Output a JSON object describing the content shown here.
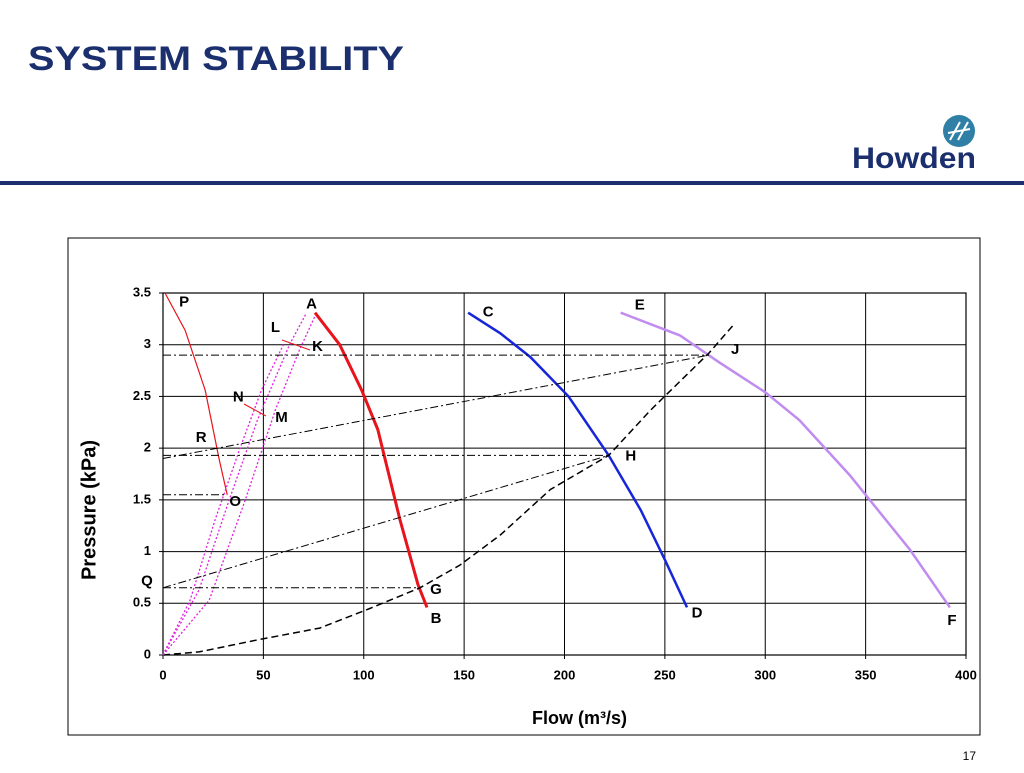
{
  "header": {
    "title": "SYSTEM STABILITY",
    "logo": "Howden"
  },
  "footer": {
    "page_number": "17"
  },
  "chart_data": {
    "type": "line",
    "x_label": "Flow (m³/s)",
    "y_label": "Pressure (kPa)",
    "xlim": [
      0,
      400
    ],
    "xticks": [
      0,
      50,
      100,
      150,
      200,
      250,
      300,
      350,
      400
    ],
    "ylim": [
      0,
      3.5
    ],
    "yticks": [
      0,
      0.5,
      1,
      1.5,
      2,
      2.5,
      3,
      3.5
    ],
    "grid": true,
    "series": [
      {
        "color": "#e8141b",
        "style": "solid",
        "width": 3,
        "x": [
          75.7,
          88,
          99,
          107,
          118,
          127,
          131.5
        ],
        "values": [
          3.31,
          3.0,
          2.56,
          2.18,
          1.31,
          0.68,
          0.46
        ]
      },
      {
        "color": "#1626d8",
        "style": "solid",
        "width": 2.5,
        "x": [
          152,
          168,
          183,
          202,
          222,
          238,
          250,
          261
        ],
        "values": [
          3.31,
          3.11,
          2.88,
          2.5,
          1.93,
          1.4,
          0.92,
          0.46
        ]
      },
      {
        "color": "#c08cf0",
        "style": "solid",
        "width": 2.5,
        "x": [
          228,
          257.5,
          277,
          300,
          317,
          342,
          372,
          392
        ],
        "values": [
          3.31,
          3.09,
          2.83,
          2.54,
          2.27,
          1.74,
          1.02,
          0.46
        ]
      },
      {
        "color": "#000000",
        "style": "dash",
        "width": 1.5,
        "x": [
          0,
          18,
          48,
          78,
          103,
          128,
          148,
          168,
          193,
          222,
          243,
          272,
          285
        ],
        "values": [
          0,
          0.03,
          0.15,
          0.26,
          0.45,
          0.65,
          0.87,
          1.16,
          1.6,
          1.93,
          2.37,
          2.92,
          3.21
        ]
      },
      {
        "color": "#e8141b",
        "style": "solid",
        "width": 1.2,
        "x": [
          1,
          11,
          21,
          28,
          32
        ],
        "values": [
          3.5,
          3.14,
          2.56,
          1.89,
          1.55
        ]
      },
      {
        "color": "#e020e0",
        "style": "dot",
        "width": 1.3,
        "x": [
          0,
          13.5,
          26,
          38,
          49,
          60
        ],
        "values": [
          0,
          0.53,
          1.31,
          1.98,
          2.56,
          3.0
        ]
      },
      {
        "color": "#e020e0",
        "style": "dot",
        "width": 1.3,
        "x": [
          0,
          18,
          33,
          47,
          63,
          71
        ],
        "values": [
          0,
          0.63,
          1.5,
          2.27,
          3.0,
          3.29
        ]
      },
      {
        "color": "#e020e0",
        "style": "dot",
        "width": 1.3,
        "x": [
          0,
          23,
          41,
          56,
          68,
          76
        ],
        "values": [
          0,
          0.53,
          1.5,
          2.37,
          2.95,
          3.29
        ]
      },
      {
        "color": "#000000",
        "style": "dashdot",
        "width": 1,
        "x": [
          0,
          272
        ],
        "values": [
          2.9,
          2.9
        ]
      },
      {
        "color": "#000000",
        "style": "dashdot",
        "width": 1,
        "x": [
          0,
          222
        ],
        "values": [
          1.93,
          1.93
        ]
      },
      {
        "color": "#000000",
        "style": "dashdot",
        "width": 1,
        "x": [
          0,
          128
        ],
        "values": [
          0.65,
          0.65
        ]
      },
      {
        "color": "#000000",
        "style": "dashdot",
        "width": 1,
        "x": [
          0,
          32
        ],
        "values": [
          1.55,
          1.55
        ]
      },
      {
        "color": "#000000",
        "style": "dashdot",
        "width": 1,
        "x": [
          0,
          272
        ],
        "values": [
          1.9,
          2.9
        ]
      },
      {
        "color": "#000000",
        "style": "dashdot",
        "width": 1,
        "x": [
          0,
          222
        ],
        "values": [
          0.65,
          1.93
        ]
      }
    ],
    "annotations": [
      {
        "text": "P",
        "x": 10.5,
        "y": 3.41
      },
      {
        "text": "A",
        "x": 74,
        "y": 3.39
      },
      {
        "text": "C",
        "x": 162,
        "y": 3.31
      },
      {
        "text": "E",
        "x": 237.5,
        "y": 3.38
      },
      {
        "text": "L",
        "x": 56,
        "y": 3.16
      },
      {
        "text": "K",
        "x": 77,
        "y": 2.98
      },
      {
        "text": "J",
        "x": 285,
        "y": 2.95
      },
      {
        "text": "N",
        "x": 37.5,
        "y": 2.49
      },
      {
        "text": "M",
        "x": 59,
        "y": 2.29
      },
      {
        "text": "R",
        "x": 19,
        "y": 2.1
      },
      {
        "text": "H",
        "x": 233,
        "y": 1.92
      },
      {
        "text": "O",
        "x": 36,
        "y": 1.48
      },
      {
        "text": "Q",
        "x": -8,
        "y": 0.71
      },
      {
        "text": "G",
        "x": 136,
        "y": 0.63
      },
      {
        "text": "B",
        "x": 136,
        "y": 0.35
      },
      {
        "text": "D",
        "x": 266,
        "y": 0.4
      },
      {
        "text": "F",
        "x": 393,
        "y": 0.33
      }
    ]
  }
}
